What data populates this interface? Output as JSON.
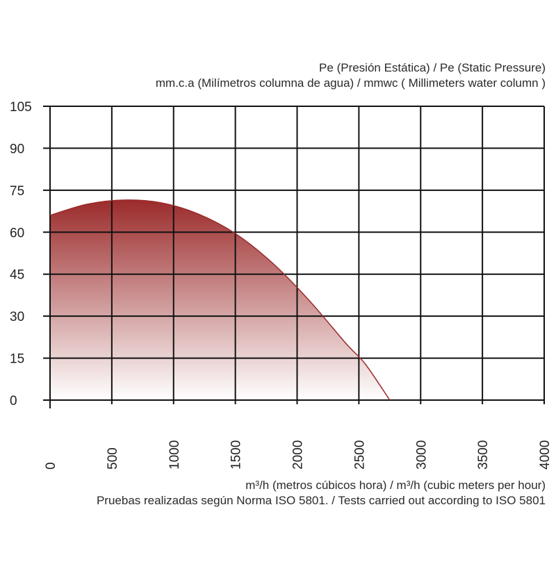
{
  "chart_data": {
    "type": "area",
    "ylabel_line1": "Pe (Presión Estática) /  Pe (Static Pressure)",
    "ylabel_line2": "mm.c.a (Milímetros columna de agua) / mmwc ( Millimeters water column )",
    "xlabel": "m³/h (metros cúbicos hora) / m³/h (cubic meters per hour)",
    "note": "Pruebas realizadas según Norma ISO 5801. / Tests carried out according to ISO 5801",
    "xlim": [
      0,
      4000
    ],
    "ylim": [
      0,
      105
    ],
    "x_ticks": [
      0,
      500,
      1000,
      1500,
      2000,
      2500,
      3000,
      3500,
      4000
    ],
    "y_ticks": [
      0,
      15,
      30,
      45,
      60,
      75,
      90,
      105
    ],
    "grid": true,
    "colors": {
      "curve": "#9b2b2b",
      "fill_top": "#9b2b2b",
      "fill_bottom": "#ffffff",
      "grid": "#111111"
    },
    "series": [
      {
        "x": [
          0,
          300,
          600,
          900,
          1200,
          1500,
          1800,
          2100,
          2400,
          2550,
          2750
        ],
        "y": [
          66,
          70,
          71.5,
          70.5,
          66.5,
          59.5,
          49,
          35.5,
          20,
          13,
          0
        ]
      }
    ]
  }
}
